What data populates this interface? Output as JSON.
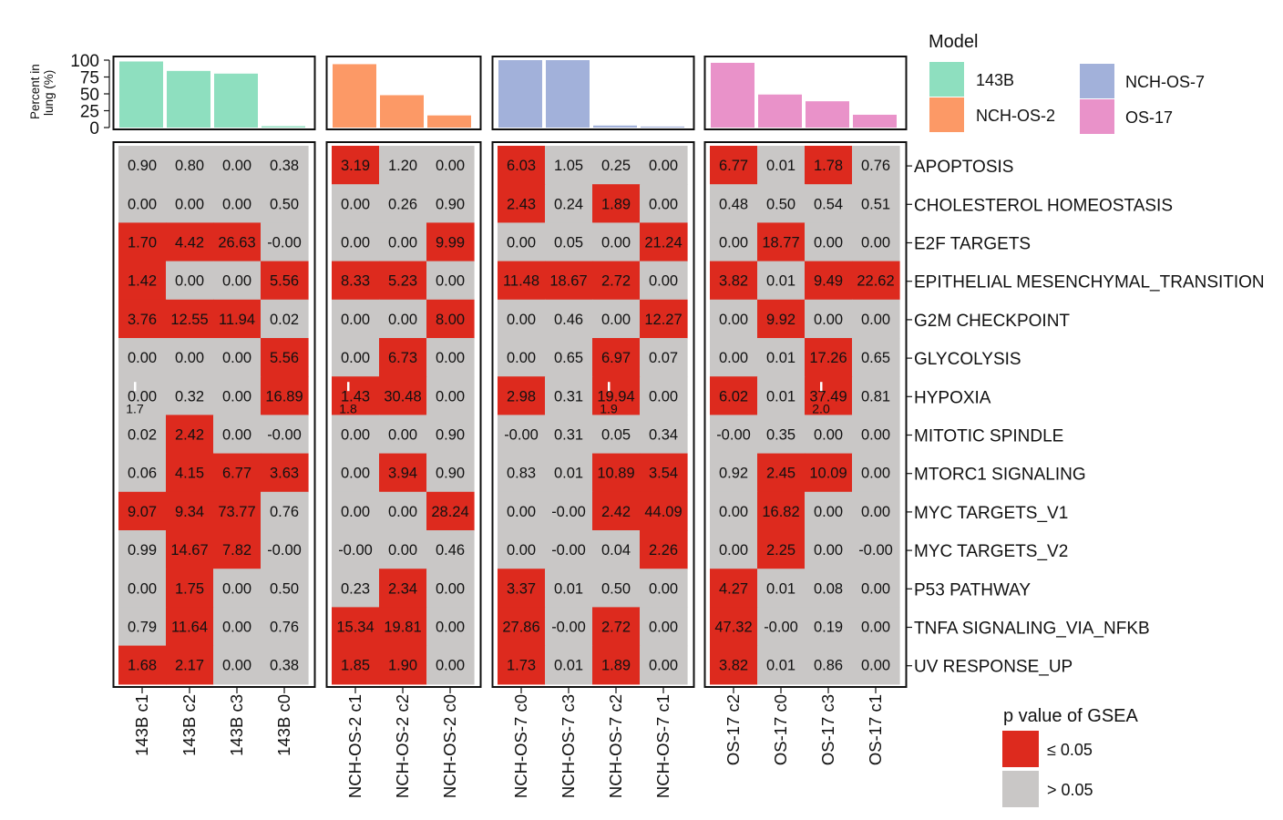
{
  "chart_data": {
    "type": "heatmap",
    "y_axis_label_lines": [
      "Percent in",
      "lung (%)"
    ],
    "y_ticks": [
      0,
      25,
      50,
      75,
      100
    ],
    "y_range": [
      0,
      100
    ],
    "pathways": [
      "APOPTOSIS",
      "CHOLESTEROL HOMEOSTASIS",
      "E2F TARGETS",
      "EPITHELIAL MESENCHYMAL_TRANSITION",
      "G2M CHECKPOINT",
      "GLYCOLYSIS",
      "HYPOXIA",
      "MITOTIC SPINDLE",
      "MTORC1 SIGNALING",
      "MYC TARGETS_V1",
      "MYC TARGETS_V2",
      "P53 PATHWAY",
      "TNFA SIGNALING_VIA_NFKB",
      "UV RESPONSE_UP"
    ],
    "models": [
      {
        "name": "143B",
        "color": "#8edfbf",
        "columns": [
          "143B c1",
          "143B c2",
          "143B c3",
          "143B c0"
        ],
        "percent_in_lung": [
          98,
          84,
          80,
          2
        ],
        "values": [
          [
            "0.90",
            "0.80",
            "0.00",
            "0.38"
          ],
          [
            "0.00",
            "0.00",
            "0.00",
            "0.50"
          ],
          [
            "1.70",
            "4.42",
            "26.63",
            "-0.00"
          ],
          [
            "1.42",
            "0.00",
            "0.00",
            "5.56"
          ],
          [
            "3.76",
            "12.55",
            "11.94",
            "0.02"
          ],
          [
            "0.00",
            "0.00",
            "0.00",
            "5.56"
          ],
          [
            "0.00",
            "0.32",
            "0.00",
            "16.89"
          ],
          [
            "0.02",
            "2.42",
            "0.00",
            "-0.00"
          ],
          [
            "0.06",
            "4.15",
            "6.77",
            "3.63"
          ],
          [
            "9.07",
            "9.34",
            "73.77",
            "0.76"
          ],
          [
            "0.99",
            "14.67",
            "7.82",
            "-0.00"
          ],
          [
            "0.00",
            "1.75",
            "0.00",
            "0.50"
          ],
          [
            "0.79",
            "11.64",
            "0.00",
            "0.76"
          ],
          [
            "1.68",
            "2.17",
            "0.00",
            "0.38"
          ]
        ],
        "significant": [
          [
            0,
            0,
            0,
            0
          ],
          [
            0,
            0,
            0,
            0
          ],
          [
            1,
            1,
            1,
            0
          ],
          [
            1,
            0,
            0,
            1
          ],
          [
            1,
            1,
            1,
            0
          ],
          [
            0,
            0,
            0,
            1
          ],
          [
            0,
            0,
            0,
            1
          ],
          [
            0,
            1,
            0,
            0
          ],
          [
            0,
            1,
            1,
            1
          ],
          [
            1,
            1,
            1,
            0
          ],
          [
            0,
            1,
            1,
            0
          ],
          [
            0,
            1,
            0,
            0
          ],
          [
            0,
            1,
            0,
            0
          ],
          [
            1,
            1,
            0,
            0
          ]
        ]
      },
      {
        "name": "NCH-OS-2",
        "color": "#fc9966",
        "columns": [
          "NCH-OS-2 c1",
          "NCH-OS-2 c2",
          "NCH-OS-2 c0"
        ],
        "percent_in_lung": [
          94,
          48,
          18
        ],
        "values": [
          [
            "3.19",
            "1.20",
            "0.00"
          ],
          [
            "0.00",
            "0.26",
            "0.90"
          ],
          [
            "0.00",
            "0.00",
            "9.99"
          ],
          [
            "8.33",
            "5.23",
            "0.00"
          ],
          [
            "0.00",
            "0.00",
            "8.00"
          ],
          [
            "0.00",
            "6.73",
            "0.00"
          ],
          [
            "1.43",
            "30.48",
            "0.00"
          ],
          [
            "0.00",
            "0.00",
            "0.90"
          ],
          [
            "0.00",
            "3.94",
            "0.90"
          ],
          [
            "0.00",
            "0.00",
            "28.24"
          ],
          [
            "-0.00",
            "0.00",
            "0.46"
          ],
          [
            "0.23",
            "2.34",
            "0.00"
          ],
          [
            "15.34",
            "19.81",
            "0.00"
          ],
          [
            "1.85",
            "1.90",
            "0.00"
          ]
        ],
        "significant": [
          [
            1,
            0,
            0
          ],
          [
            0,
            0,
            0
          ],
          [
            0,
            0,
            1
          ],
          [
            1,
            1,
            0
          ],
          [
            0,
            0,
            1
          ],
          [
            0,
            1,
            0
          ],
          [
            1,
            1,
            0
          ],
          [
            0,
            0,
            0
          ],
          [
            0,
            1,
            0
          ],
          [
            0,
            0,
            1
          ],
          [
            0,
            0,
            0
          ],
          [
            0,
            1,
            0
          ],
          [
            1,
            1,
            0
          ],
          [
            1,
            1,
            0
          ]
        ]
      },
      {
        "name": "NCH-OS-7",
        "color": "#a2b1da",
        "columns": [
          "NCH-OS-7 c0",
          "NCH-OS-7 c3",
          "NCH-OS-7 c2",
          "NCH-OS-7 c1"
        ],
        "percent_in_lung": [
          100,
          100,
          3,
          1.5
        ],
        "values": [
          [
            "6.03",
            "1.05",
            "0.25",
            "0.00"
          ],
          [
            "2.43",
            "0.24",
            "1.89",
            "0.00"
          ],
          [
            "0.00",
            "0.05",
            "0.00",
            "21.24"
          ],
          [
            "11.48",
            "18.67",
            "2.72",
            "0.00"
          ],
          [
            "0.00",
            "0.46",
            "0.00",
            "12.27"
          ],
          [
            "0.00",
            "0.65",
            "6.97",
            "0.07"
          ],
          [
            "2.98",
            "0.31",
            "19.94",
            "0.00"
          ],
          [
            "-0.00",
            "0.31",
            "0.05",
            "0.34"
          ],
          [
            "0.83",
            "0.01",
            "10.89",
            "3.54"
          ],
          [
            "0.00",
            "-0.00",
            "2.42",
            "44.09"
          ],
          [
            "0.00",
            "-0.00",
            "0.04",
            "2.26"
          ],
          [
            "3.37",
            "0.01",
            "0.50",
            "0.00"
          ],
          [
            "27.86",
            "-0.00",
            "2.72",
            "0.00"
          ],
          [
            "1.73",
            "0.01",
            "1.89",
            "0.00"
          ]
        ],
        "significant": [
          [
            1,
            0,
            0,
            0
          ],
          [
            1,
            0,
            1,
            0
          ],
          [
            0,
            0,
            0,
            1
          ],
          [
            1,
            1,
            1,
            0
          ],
          [
            0,
            0,
            0,
            1
          ],
          [
            0,
            0,
            1,
            0
          ],
          [
            1,
            0,
            1,
            0
          ],
          [
            0,
            0,
            0,
            0
          ],
          [
            0,
            0,
            1,
            1
          ],
          [
            0,
            0,
            1,
            1
          ],
          [
            0,
            0,
            0,
            1
          ],
          [
            1,
            0,
            0,
            0
          ],
          [
            1,
            0,
            1,
            0
          ],
          [
            1,
            0,
            1,
            0
          ]
        ]
      },
      {
        "name": "OS-17",
        "color": "#e992c9",
        "columns": [
          "OS-17 c2",
          "OS-17 c0",
          "OS-17 c3",
          "OS-17 c1"
        ],
        "percent_in_lung": [
          96,
          49,
          39,
          19
        ],
        "values": [
          [
            "6.77",
            "0.01",
            "1.78",
            "0.76"
          ],
          [
            "0.48",
            "0.50",
            "0.54",
            "0.51"
          ],
          [
            "0.00",
            "18.77",
            "0.00",
            "0.00"
          ],
          [
            "3.82",
            "0.01",
            "9.49",
            "22.62"
          ],
          [
            "0.00",
            "9.92",
            "0.00",
            "0.00"
          ],
          [
            "0.00",
            "0.01",
            "17.26",
            "0.65"
          ],
          [
            "6.02",
            "0.01",
            "37.49",
            "0.81"
          ],
          [
            "-0.00",
            "0.35",
            "0.00",
            "0.00"
          ],
          [
            "0.92",
            "2.45",
            "10.09",
            "0.00"
          ],
          [
            "0.00",
            "16.82",
            "0.00",
            "0.00"
          ],
          [
            "0.00",
            "2.25",
            "0.00",
            "-0.00"
          ],
          [
            "4.27",
            "0.01",
            "0.08",
            "0.00"
          ],
          [
            "47.32",
            "-0.00",
            "0.19",
            "0.00"
          ],
          [
            "3.82",
            "0.01",
            "0.86",
            "0.00"
          ]
        ],
        "significant": [
          [
            1,
            0,
            1,
            0
          ],
          [
            0,
            0,
            0,
            0
          ],
          [
            0,
            1,
            0,
            0
          ],
          [
            1,
            0,
            1,
            1
          ],
          [
            0,
            1,
            0,
            0
          ],
          [
            0,
            0,
            1,
            0
          ],
          [
            1,
            0,
            1,
            0
          ],
          [
            0,
            0,
            0,
            0
          ],
          [
            0,
            1,
            1,
            0
          ],
          [
            0,
            1,
            0,
            0
          ],
          [
            0,
            1,
            0,
            0
          ],
          [
            1,
            0,
            0,
            0
          ],
          [
            1,
            0,
            0,
            0
          ],
          [
            1,
            0,
            0,
            0
          ]
        ]
      }
    ],
    "overlay_annotations": [
      {
        "model": "143B",
        "column": 0,
        "row": 6,
        "text": "1.7"
      },
      {
        "model": "NCH-OS-2",
        "column": 0,
        "row": 6,
        "text": "1.8"
      },
      {
        "model": "NCH-OS-7",
        "column": 2,
        "row": 6,
        "text": "1.9"
      },
      {
        "model": "OS-17",
        "column": 2,
        "row": 6,
        "text": "2.0"
      }
    ],
    "model_legend": {
      "title": "Model",
      "entries": [
        "143B",
        "NCH-OS-7",
        "NCH-OS-2",
        "OS-17"
      ]
    },
    "pvalue_legend": {
      "title": "p value of GSEA",
      "entries": [
        {
          "label": "≤ 0.05",
          "color": "#dd2a1e"
        },
        {
          "label": "> 0.05",
          "color": "#c9c7c6"
        }
      ]
    },
    "colors": {
      "significant": "#dd2a1e",
      "not_significant": "#c9c7c6"
    }
  }
}
